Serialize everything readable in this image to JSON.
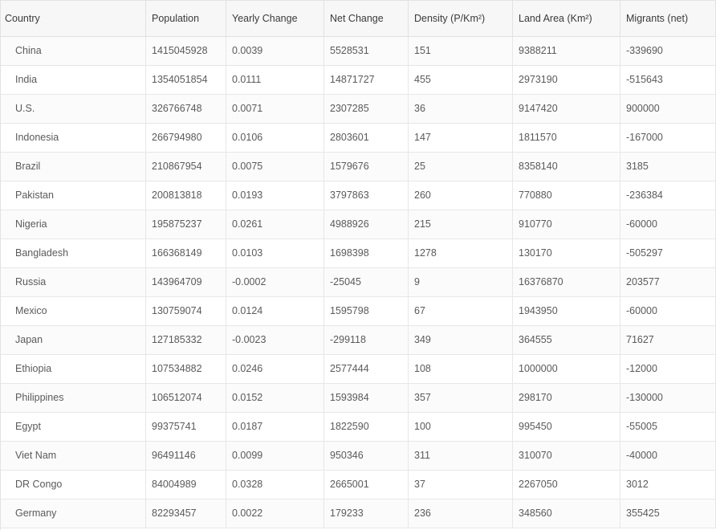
{
  "table": {
    "columns": [
      "Country",
      "Population",
      "Yearly Change",
      "Net Change",
      "Density (P/Km²)",
      "Land Area (Km²)",
      "Migrants (net)"
    ],
    "rows": [
      [
        "China",
        "1415045928",
        "0.0039",
        "5528531",
        "151",
        "9388211",
        "-339690"
      ],
      [
        "India",
        "1354051854",
        "0.0111",
        "14871727",
        "455",
        "2973190",
        "-515643"
      ],
      [
        "U.S.",
        "326766748",
        "0.0071",
        "2307285",
        "36",
        "9147420",
        "900000"
      ],
      [
        "Indonesia",
        "266794980",
        "0.0106",
        "2803601",
        "147",
        "1811570",
        "-167000"
      ],
      [
        "Brazil",
        "210867954",
        "0.0075",
        "1579676",
        "25",
        "8358140",
        "3185"
      ],
      [
        "Pakistan",
        "200813818",
        "0.0193",
        "3797863",
        "260",
        "770880",
        "-236384"
      ],
      [
        "Nigeria",
        "195875237",
        "0.0261",
        "4988926",
        "215",
        "910770",
        "-60000"
      ],
      [
        "Bangladesh",
        "166368149",
        "0.0103",
        "1698398",
        "1278",
        "130170",
        "-505297"
      ],
      [
        "Russia",
        "143964709",
        "-0.0002",
        "-25045",
        "9",
        "16376870",
        "203577"
      ],
      [
        "Mexico",
        "130759074",
        "0.0124",
        "1595798",
        "67",
        "1943950",
        "-60000"
      ],
      [
        "Japan",
        "127185332",
        "-0.0023",
        "-299118",
        "349",
        "364555",
        "71627"
      ],
      [
        "Ethiopia",
        "107534882",
        "0.0246",
        "2577444",
        "108",
        "1000000",
        "-12000"
      ],
      [
        "Philippines",
        "106512074",
        "0.0152",
        "1593984",
        "357",
        "298170",
        "-130000"
      ],
      [
        "Egypt",
        "99375741",
        "0.0187",
        "1822590",
        "100",
        "995450",
        "-55005"
      ],
      [
        "Viet Nam",
        "96491146",
        "0.0099",
        "950346",
        "311",
        "310070",
        "-40000"
      ],
      [
        "DR Congo",
        "84004989",
        "0.0328",
        "2665001",
        "37",
        "2267050",
        "3012"
      ],
      [
        "Germany",
        "82293457",
        "0.0022",
        "179233",
        "236",
        "348560",
        "355425"
      ]
    ]
  }
}
